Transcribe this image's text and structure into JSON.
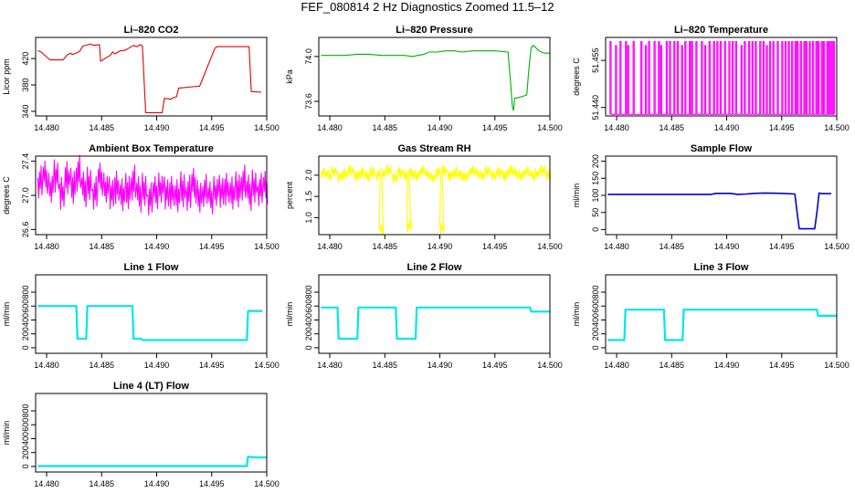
{
  "figure": {
    "title": "FEF_080814  2 Hz Diagnostics Zoomed 11.5–12"
  },
  "chart_data": [
    {
      "type": "line",
      "title": "Li–820 CO2",
      "ylabel": "Licor ppm",
      "color": "#e00000",
      "xlim": [
        14.479,
        14.5
      ],
      "ylim": [
        333,
        452
      ],
      "xticks": [
        "14.480",
        "14.485",
        "14.490",
        "14.495",
        "14.500"
      ],
      "xtick_values": [
        14.48,
        14.485,
        14.49,
        14.495,
        14.5
      ],
      "yticks": [
        "340",
        "380",
        "420"
      ],
      "ytick_values": [
        340,
        380,
        420
      ],
      "x": [
        14.4792,
        14.4795,
        14.4803,
        14.4813,
        14.4815,
        14.4819,
        14.4822,
        14.4823,
        14.4828,
        14.483,
        14.4833,
        14.4838,
        14.484,
        14.4843,
        14.4848,
        14.4849,
        14.4855,
        14.4858,
        14.486,
        14.4862,
        14.4867,
        14.4869,
        14.4872,
        14.4879,
        14.4882,
        14.4885,
        14.4887,
        14.489,
        14.4897,
        14.4898,
        14.4905,
        14.4907,
        14.4913,
        14.4914,
        14.4918,
        14.492,
        14.4937,
        14.4939,
        14.4953,
        14.4955,
        14.4973,
        14.4984,
        14.4986,
        14.4995
      ],
      "y": [
        432,
        430,
        418,
        418,
        418,
        426,
        428,
        426,
        429,
        431,
        439,
        441,
        442,
        440,
        441,
        416,
        422,
        425,
        430,
        427,
        432,
        432,
        433,
        440,
        438,
        441,
        439,
        338,
        338,
        338,
        338,
        360,
        358,
        360,
        362,
        375,
        378,
        378,
        436,
        438,
        438,
        438,
        370,
        369
      ]
    },
    {
      "type": "line",
      "title": "Li–820 Pressure",
      "ylabel": "kPa",
      "color": "#00b000",
      "xlim": [
        14.479,
        14.5
      ],
      "ylim": [
        73.47,
        74.17
      ],
      "xticks": [
        "14.480",
        "14.485",
        "14.490",
        "14.495",
        "14.500"
      ],
      "xtick_values": [
        14.48,
        14.485,
        14.49,
        14.495,
        14.5
      ],
      "yticks": [
        "73.6",
        "74.0"
      ],
      "ytick_values": [
        73.6,
        74.0
      ],
      "x": [
        14.4792,
        14.4803,
        14.4813,
        14.4825,
        14.4836,
        14.4847,
        14.4858,
        14.4868,
        14.4875,
        14.488,
        14.4886,
        14.489,
        14.4898,
        14.4905,
        14.4913,
        14.492,
        14.493,
        14.494,
        14.495,
        14.4962,
        14.4964,
        14.4966,
        14.4967,
        14.4968,
        14.497,
        14.4977,
        14.4979,
        14.4981,
        14.4983,
        14.4985,
        14.499,
        14.4995,
        14.5
      ],
      "y": [
        74.01,
        74.01,
        74.01,
        74.02,
        74.02,
        74.01,
        74.01,
        74.01,
        74.0,
        74.01,
        74.02,
        74.04,
        74.04,
        74.05,
        74.05,
        74.04,
        74.05,
        74.05,
        74.05,
        74.04,
        73.8,
        73.55,
        73.52,
        73.63,
        73.63,
        73.65,
        73.66,
        73.9,
        74.08,
        74.1,
        74.05,
        74.03,
        74.03
      ]
    },
    {
      "type": "line",
      "title": "Li–820 Temperature",
      "ylabel": "degrees C",
      "color": "#ff00ff",
      "xlim": [
        14.479,
        14.5
      ],
      "ylim": [
        51.4373,
        51.4623
      ],
      "xticks": [
        "14.480",
        "14.485",
        "14.490",
        "14.495",
        "14.500"
      ],
      "xtick_values": [
        14.48,
        14.485,
        14.49,
        14.495,
        14.5
      ],
      "yticks": [
        "51.440",
        "51.455"
      ],
      "ytick_values": [
        51.44,
        51.455
      ],
      "x": [
        14.4794,
        14.4799,
        14.4803,
        14.4808,
        14.481,
        14.4815,
        14.4822,
        14.4826,
        14.4829,
        14.4834,
        14.4838,
        14.484,
        14.4845,
        14.4848,
        14.4852,
        14.4855,
        14.4859,
        14.4862,
        14.4866,
        14.4868,
        14.4872,
        14.4877,
        14.488,
        14.4884,
        14.4888,
        14.4891,
        14.4894,
        14.4898,
        14.4902,
        14.4905,
        14.4908,
        14.4913,
        14.4916,
        14.492,
        14.4923,
        14.4926,
        14.493,
        14.4933,
        14.4936,
        14.4939,
        14.4942,
        14.4946,
        14.495,
        14.4953,
        14.4956,
        14.4959,
        14.4962,
        14.4964,
        14.4967,
        14.497,
        14.4972,
        14.4975,
        14.4978,
        14.4981,
        14.4983,
        14.4986,
        14.4988,
        14.4991,
        14.4993,
        14.4995,
        14.4997
      ],
      "y": [
        51.461,
        51.4597,
        51.461,
        51.461,
        51.4597,
        51.461,
        51.461,
        51.4597,
        51.461,
        51.461,
        51.461,
        51.4597,
        51.461,
        51.461,
        51.461,
        51.461,
        51.4597,
        51.461,
        51.461,
        51.461,
        51.461,
        51.461,
        51.4597,
        51.461,
        51.461,
        51.461,
        51.461,
        51.461,
        51.461,
        51.461,
        51.461,
        51.4597,
        51.461,
        51.461,
        51.461,
        51.461,
        51.461,
        51.461,
        51.4597,
        51.461,
        51.461,
        51.461,
        51.461,
        51.461,
        51.461,
        51.461,
        51.461,
        51.461,
        51.461,
        51.461,
        51.461,
        51.461,
        51.461,
        51.461,
        51.461,
        51.461,
        51.461,
        51.461,
        51.461,
        51.461,
        51.461
      ]
    },
    {
      "type": "line",
      "title": "Ambient Box Temperature",
      "ylabel": "degrees C",
      "color": "#ff00ff",
      "xlim": [
        14.479,
        14.5
      ],
      "ylim": [
        26.54,
        27.46
      ],
      "xticks": [
        "14.480",
        "14.485",
        "14.490",
        "14.495",
        "14.500"
      ],
      "xtick_values": [
        14.48,
        14.485,
        14.49,
        14.495,
        14.5
      ],
      "yticks": [
        "26.6",
        "27.0",
        "27.4"
      ],
      "ytick_values": [
        26.6,
        27.0,
        27.4
      ],
      "x": [
        14.4792,
        14.4797,
        14.4802,
        14.4807,
        14.4812,
        14.4817,
        14.4822,
        14.4827,
        14.4832,
        14.4837,
        14.4842,
        14.4847,
        14.4852,
        14.4857,
        14.4862,
        14.4867,
        14.4872,
        14.4877,
        14.4882,
        14.4887,
        14.4892,
        14.4897,
        14.4902,
        14.4907,
        14.4912,
        14.4917,
        14.4922,
        14.4927,
        14.4932,
        14.4937,
        14.4942,
        14.4947,
        14.4952,
        14.4957,
        14.4962,
        14.4967,
        14.4972,
        14.4977,
        14.4982,
        14.4987,
        14.4992,
        14.4997
      ],
      "y": [
        27.15,
        27.22,
        27.1,
        27.2,
        27.05,
        27.18,
        27.12,
        27.25,
        27.08,
        27.15,
        27.02,
        27.2,
        27.1,
        27.0,
        27.12,
        26.98,
        27.06,
        27.14,
        27.02,
        27.08,
        26.95,
        27.04,
        27.1,
        27.0,
        27.06,
        26.97,
        27.08,
        27.02,
        27.12,
        27.0,
        27.05,
        26.98,
        27.06,
        27.02,
        27.1,
        27.0,
        27.08,
        27.14,
        27.04,
        27.12,
        27.06,
        27.1
      ]
    },
    {
      "type": "line",
      "title": "Gas Stream RH",
      "ylabel": "percent",
      "color": "#ffff00",
      "xlim": [
        14.479,
        14.5
      ],
      "ylim": [
        0.6,
        2.45
      ],
      "xticks": [
        "14.480",
        "14.485",
        "14.490",
        "14.495",
        "14.500"
      ],
      "xtick_values": [
        14.48,
        14.485,
        14.49,
        14.495,
        14.5
      ],
      "yticks": [
        "1.0",
        "1.5",
        "2.0"
      ],
      "ytick_values": [
        1.0,
        1.5,
        2.0
      ],
      "x": [
        14.4792,
        14.4797,
        14.4802,
        14.4807,
        14.4812,
        14.4817,
        14.4822,
        14.4827,
        14.4832,
        14.4837,
        14.4842,
        14.4845,
        14.4847,
        14.4852,
        14.4857,
        14.4862,
        14.4867,
        14.487,
        14.4872,
        14.4877,
        14.4882,
        14.4887,
        14.4892,
        14.4897,
        14.49,
        14.4902,
        14.4907,
        14.4912,
        14.4917,
        14.4922,
        14.4927,
        14.4932,
        14.4937,
        14.4942,
        14.4947,
        14.4952,
        14.4957,
        14.4962,
        14.4967,
        14.4972,
        14.4977,
        14.4982,
        14.4987,
        14.4992,
        14.4997
      ],
      "y": [
        2.05,
        2.0,
        2.1,
        1.95,
        2.05,
        2.1,
        2.0,
        2.05,
        1.98,
        2.08,
        2.0,
        0.72,
        2.05,
        2.1,
        1.95,
        2.05,
        2.0,
        0.8,
        2.05,
        2.0,
        2.1,
        2.02,
        1.95,
        2.05,
        0.78,
        2.1,
        2.0,
        2.05,
        2.0,
        1.98,
        2.1,
        2.05,
        2.0,
        2.08,
        2.02,
        2.05,
        2.0,
        2.1,
        2.05,
        2.0,
        2.08,
        2.0,
        2.05,
        2.1,
        2.02
      ]
    },
    {
      "type": "line",
      "title": "Sample Flow",
      "ylabel": "ml/min",
      "color": "#0000cc",
      "xlim": [
        14.479,
        14.5
      ],
      "ylim": [
        -15,
        215
      ],
      "xticks": [
        "14.480",
        "14.485",
        "14.490",
        "14.495",
        "14.500"
      ],
      "xtick_values": [
        14.48,
        14.485,
        14.49,
        14.495,
        14.5
      ],
      "yticks": [
        "0",
        "50",
        "100",
        "150",
        "200"
      ],
      "ytick_values": [
        0,
        50,
        100,
        150,
        200
      ],
      "x": [
        14.4792,
        14.483,
        14.487,
        14.4886,
        14.489,
        14.49,
        14.4903,
        14.491,
        14.4918,
        14.4925,
        14.4935,
        14.495,
        14.4962,
        14.4964,
        14.4966,
        14.4967,
        14.498,
        14.4982,
        14.4984,
        14.4986,
        14.4995
      ],
      "y": [
        103,
        103,
        103,
        103,
        106,
        106,
        106,
        103,
        104,
        106,
        107,
        106,
        104,
        50,
        2,
        2,
        2,
        50,
        107,
        105,
        105
      ]
    },
    {
      "type": "line",
      "title": "Line 1 Flow",
      "ylabel": "ml/min",
      "color": "#00e5ee",
      "xlim": [
        14.479,
        14.5
      ],
      "ylim": [
        -80,
        1050
      ],
      "xticks": [
        "14.480",
        "14.485",
        "14.490",
        "14.495",
        "14.500"
      ],
      "xtick_values": [
        14.48,
        14.485,
        14.49,
        14.495,
        14.5
      ],
      "yticks": [
        "0",
        "200",
        "400",
        "600",
        "800"
      ],
      "ytick_values": [
        0,
        200,
        400,
        600,
        800
      ],
      "x": [
        14.4792,
        14.4827,
        14.4828,
        14.4832,
        14.4836,
        14.4837,
        14.4878,
        14.4879,
        14.4886,
        14.4887,
        14.489,
        14.4982,
        14.4983,
        14.4996
      ],
      "y": [
        600,
        600,
        130,
        130,
        130,
        600,
        600,
        130,
        130,
        110,
        110,
        110,
        530,
        530
      ]
    },
    {
      "type": "line",
      "title": "Line 2 Flow",
      "ylabel": "ml/min",
      "color": "#00e5ee",
      "xlim": [
        14.479,
        14.5
      ],
      "ylim": [
        -80,
        1050
      ],
      "xticks": [
        "14.480",
        "14.485",
        "14.490",
        "14.495",
        "14.500"
      ],
      "xtick_values": [
        14.48,
        14.485,
        14.49,
        14.495,
        14.5
      ],
      "yticks": [
        "0",
        "200",
        "400",
        "600",
        "800"
      ],
      "ytick_values": [
        0,
        200,
        400,
        600,
        800
      ],
      "x": [
        14.4792,
        14.4807,
        14.4808,
        14.4825,
        14.4826,
        14.486,
        14.4861,
        14.4878,
        14.4879,
        14.493,
        14.4982,
        14.4983,
        14.5
      ],
      "y": [
        580,
        580,
        130,
        130,
        580,
        580,
        130,
        130,
        580,
        580,
        580,
        520,
        520
      ]
    },
    {
      "type": "line",
      "title": "Line 3 Flow",
      "ylabel": "ml/min",
      "color": "#00e5ee",
      "xlim": [
        14.479,
        14.5
      ],
      "ylim": [
        -80,
        1050
      ],
      "xticks": [
        "14.480",
        "14.485",
        "14.490",
        "14.495",
        "14.500"
      ],
      "xtick_values": [
        14.48,
        14.485,
        14.49,
        14.495,
        14.5
      ],
      "yticks": [
        "0",
        "200",
        "400",
        "600",
        "800"
      ],
      "ytick_values": [
        0,
        200,
        400,
        600,
        800
      ],
      "x": [
        14.4792,
        14.4807,
        14.4808,
        14.4843,
        14.4844,
        14.486,
        14.4861,
        14.49,
        14.495,
        14.4982,
        14.4983,
        14.5
      ],
      "y": [
        110,
        110,
        550,
        550,
        110,
        110,
        550,
        550,
        550,
        550,
        460,
        460
      ]
    },
    {
      "type": "line",
      "title": "Line 4 (LT) Flow",
      "ylabel": "ml/min",
      "color": "#00e5ee",
      "xlim": [
        14.479,
        14.5
      ],
      "ylim": [
        -80,
        1050
      ],
      "xticks": [
        "14.480",
        "14.485",
        "14.490",
        "14.495",
        "14.500"
      ],
      "xtick_values": [
        14.48,
        14.485,
        14.49,
        14.495,
        14.5
      ],
      "yticks": [
        "0",
        "200",
        "400",
        "600",
        "800"
      ],
      "ytick_values": [
        0,
        200,
        400,
        600,
        800
      ],
      "x": [
        14.4792,
        14.485,
        14.49,
        14.495,
        14.4982,
        14.4983,
        14.499,
        14.5
      ],
      "y": [
        5,
        5,
        5,
        5,
        5,
        140,
        130,
        130
      ]
    }
  ]
}
